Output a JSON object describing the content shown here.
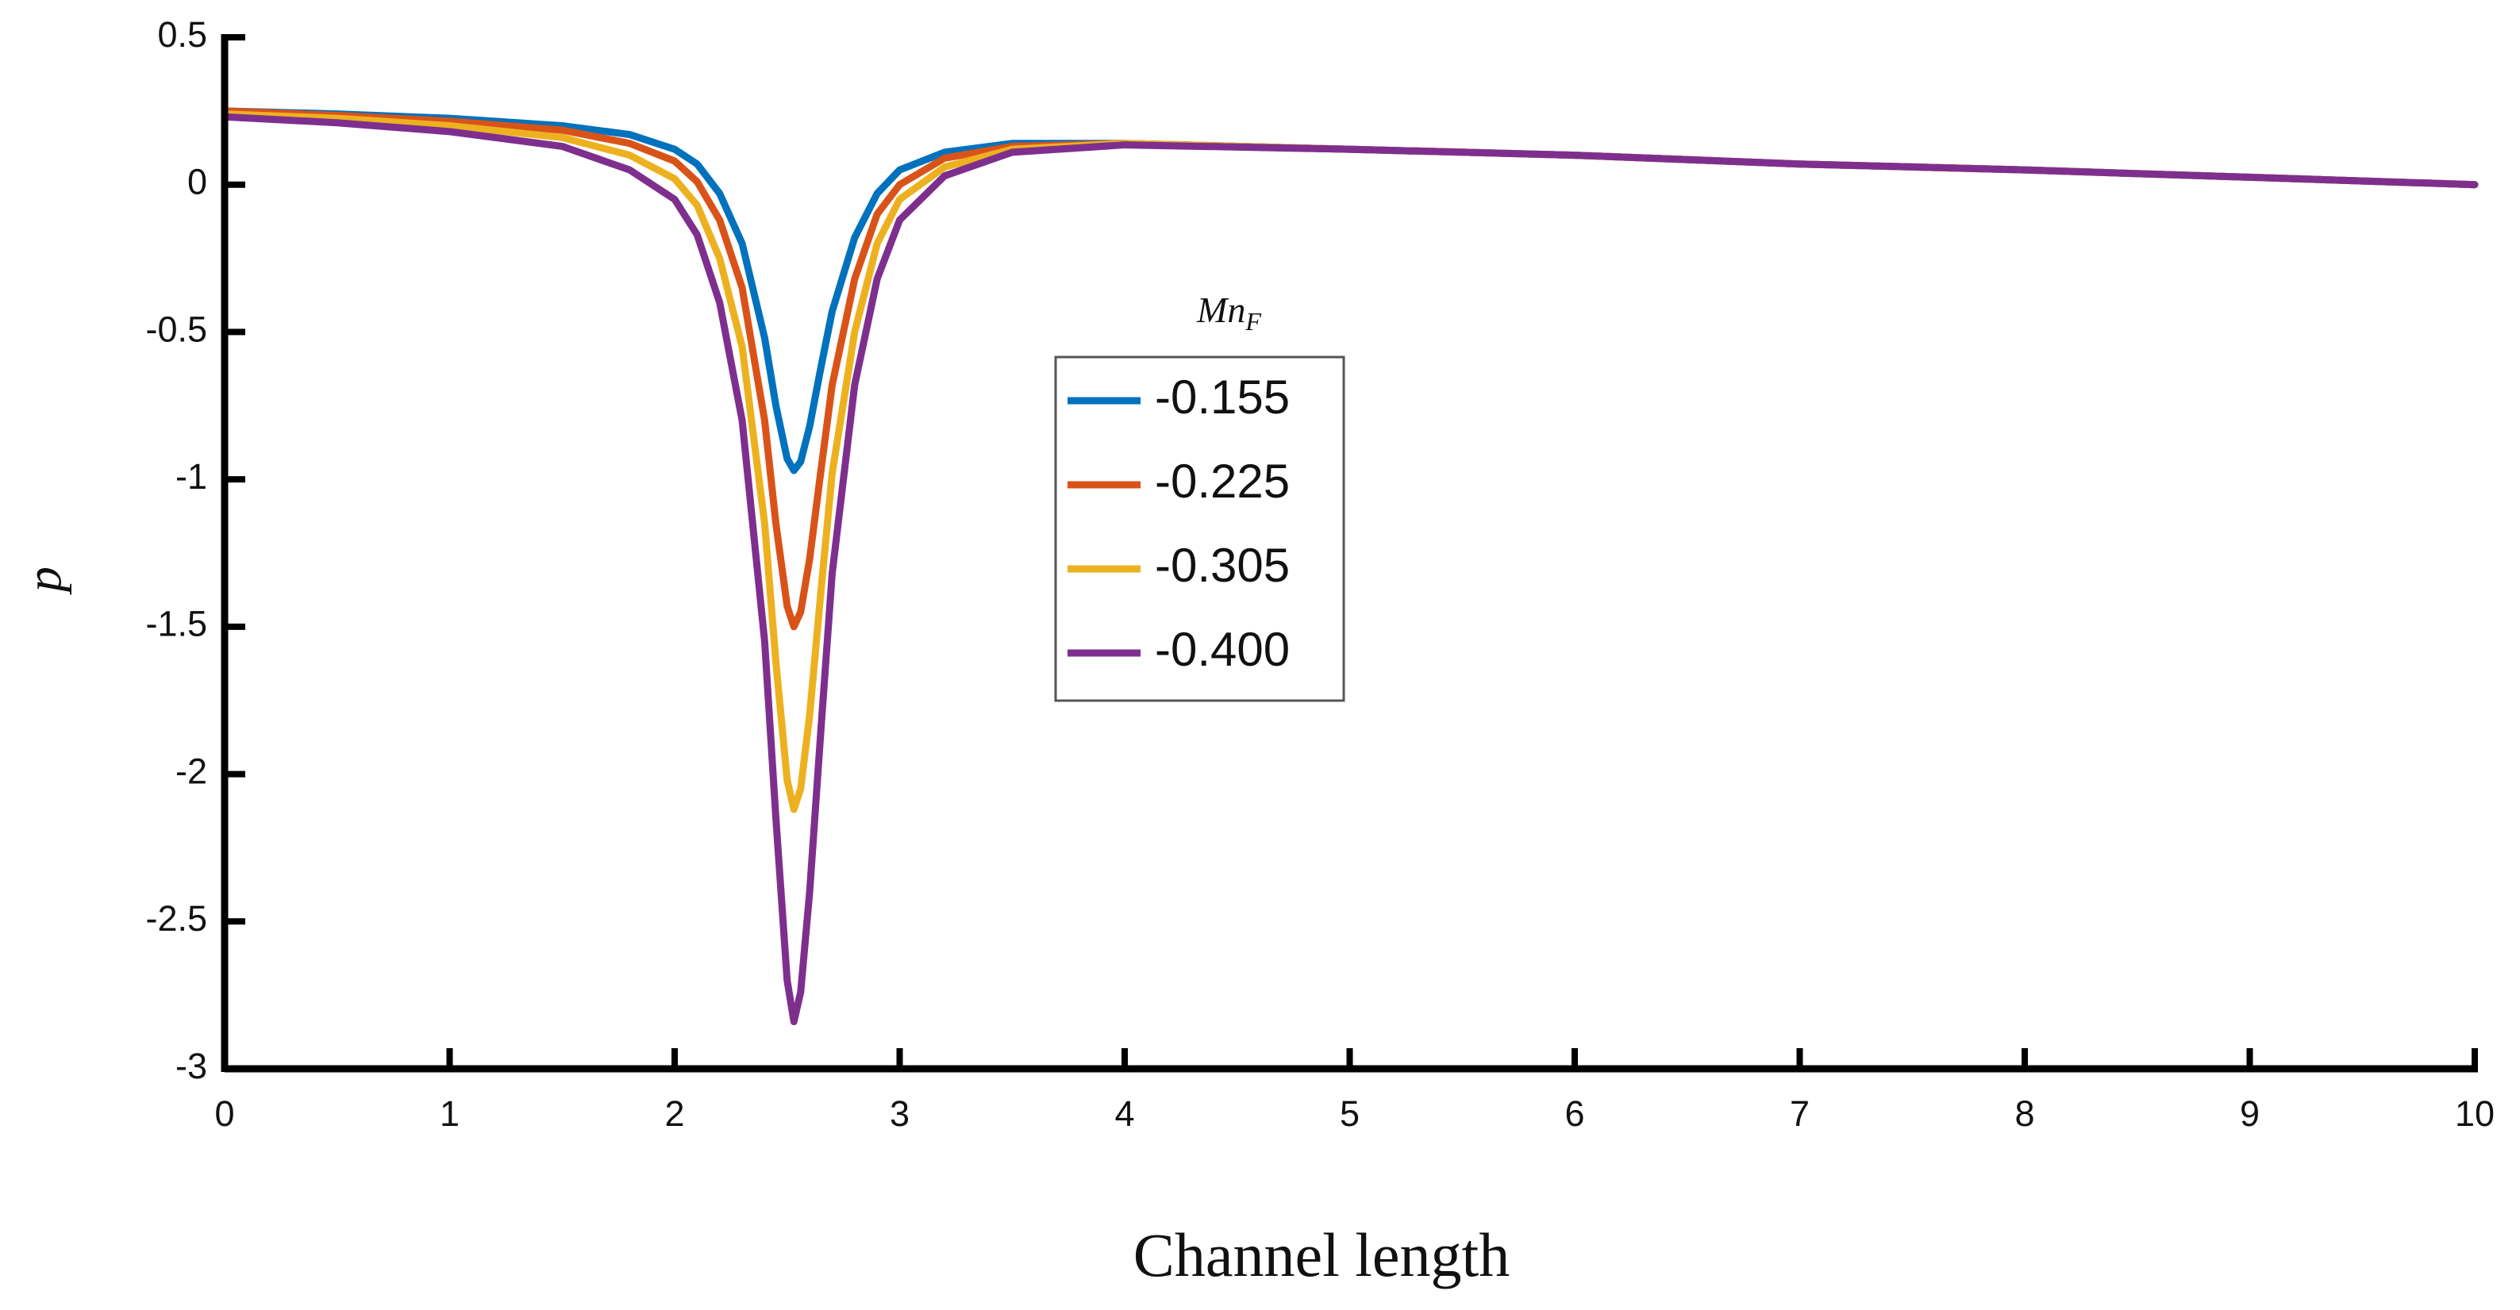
{
  "chart_data": {
    "type": "line",
    "x_label": "Channel length",
    "y_label": "p",
    "legend_title": {
      "text": "Mn",
      "subscript": "F"
    },
    "x": [
      0,
      0.5,
      1,
      1.5,
      1.8,
      2,
      2.1,
      2.2,
      2.3,
      2.4,
      2.45,
      2.5,
      2.53,
      2.56,
      2.6,
      2.65,
      2.7,
      2.8,
      2.9,
      3,
      3.2,
      3.5,
      4,
      5,
      6,
      7,
      8,
      9,
      10
    ],
    "series": [
      {
        "name": "-0.155",
        "color": "#0072bd",
        "values": [
          0.25,
          0.24,
          0.225,
          0.2,
          0.17,
          0.12,
          0.07,
          -0.03,
          -0.2,
          -0.52,
          -0.75,
          -0.93,
          -0.97,
          -0.94,
          -0.82,
          -0.62,
          -0.43,
          -0.18,
          -0.03,
          0.05,
          0.11,
          0.14,
          0.14,
          0.12,
          0.1,
          0.07,
          0.05,
          0.025,
          0
        ]
      },
      {
        "name": "-0.225",
        "color": "#d95319",
        "values": [
          0.25,
          0.235,
          0.215,
          0.185,
          0.14,
          0.08,
          0.01,
          -0.12,
          -0.35,
          -0.8,
          -1.15,
          -1.43,
          -1.5,
          -1.45,
          -1.27,
          -0.97,
          -0.68,
          -0.32,
          -0.1,
          0,
          0.09,
          0.13,
          0.14,
          0.12,
          0.1,
          0.07,
          0.05,
          0.025,
          0
        ]
      },
      {
        "name": "-0.305",
        "color": "#edb120",
        "values": [
          0.24,
          0.225,
          0.2,
          0.16,
          0.1,
          0.02,
          -0.07,
          -0.25,
          -0.55,
          -1.15,
          -1.62,
          -2.02,
          -2.12,
          -2.05,
          -1.8,
          -1.38,
          -0.98,
          -0.5,
          -0.2,
          -0.05,
          0.06,
          0.12,
          0.14,
          0.12,
          0.1,
          0.07,
          0.05,
          0.025,
          0
        ]
      },
      {
        "name": "-0.400",
        "color": "#7e2f8e",
        "values": [
          0.23,
          0.21,
          0.18,
          0.13,
          0.05,
          -0.05,
          -0.17,
          -0.4,
          -0.8,
          -1.55,
          -2.15,
          -2.7,
          -2.84,
          -2.74,
          -2.4,
          -1.85,
          -1.32,
          -0.68,
          -0.32,
          -0.12,
          0.03,
          0.11,
          0.135,
          0.12,
          0.1,
          0.07,
          0.05,
          0.025,
          0
        ]
      }
    ],
    "xlim": [
      0,
      10
    ],
    "xticks": [
      0,
      1,
      2,
      3,
      4,
      5,
      6,
      7,
      8,
      9,
      10
    ],
    "ylim": [
      -3,
      0.5
    ],
    "yticks": [
      0.5,
      0,
      -0.5,
      -1,
      -1.5,
      -2,
      -2.5,
      -3
    ],
    "grid": false
  }
}
